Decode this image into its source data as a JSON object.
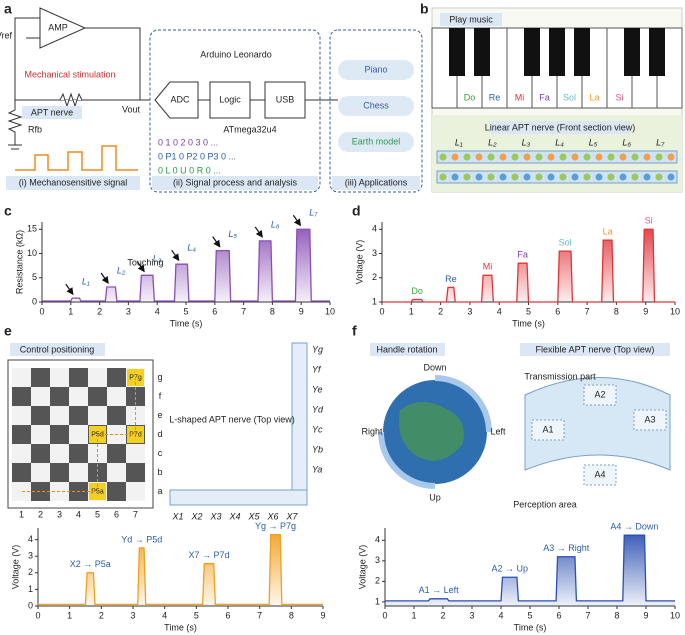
{
  "panel_labels": [
    "a",
    "b",
    "c",
    "d",
    "e",
    "f"
  ],
  "panel_a": {
    "vref": "Vref",
    "amp": "AMP",
    "stimulation": "Mechanical stimulation",
    "nerve": "APT nerve",
    "rfb": "Rfb",
    "vout": "Vout",
    "mcu": "Arduino Leonardo",
    "adc": "ADC",
    "logic": "Logic",
    "usb": "USB",
    "chip": "ATmega32u4",
    "bits": [
      "0 1 0 2 0 3 0 ...",
      "0 P1 0 P2 0 P3 0 ...",
      "0 L 0 U 0 R 0 ..."
    ],
    "apps": [
      "Piano",
      "Chess",
      "Earth model"
    ],
    "captions": [
      "(i) Mechanosensitive signal",
      "(ii) Signal process and analysis",
      "(iii) Applications"
    ]
  },
  "panel_b": {
    "title": "Play music",
    "notes": [
      "Do",
      "Re",
      "Mi",
      "Fa",
      "Sol",
      "La",
      "Si"
    ],
    "nerve": "Linear APT nerve (Front section view)",
    "segments": [
      "L₁",
      "L₂",
      "L₃",
      "L₄",
      "L₅",
      "L₆",
      "L₇"
    ]
  },
  "panel_e": {
    "title": "Control positioning",
    "rows": [
      "g",
      "f",
      "e",
      "d",
      "c",
      "b",
      "a"
    ],
    "cols": [
      "1",
      "2",
      "3",
      "4",
      "5",
      "6",
      "7"
    ],
    "cells": [
      "P7g",
      "P5d",
      "P7d",
      "P5a"
    ],
    "nerve": "L-shaped APT nerve (Top view)",
    "y_labels": [
      "Yg",
      "Yf",
      "Ye",
      "Yd",
      "Yc",
      "Yb",
      "Ya"
    ],
    "x_labels": [
      "X1",
      "X2",
      "X3",
      "X4",
      "X5",
      "X6",
      "X7"
    ]
  },
  "panel_f": {
    "title": "Handle rotation",
    "directions": [
      "Down",
      "Left",
      "Up",
      "Right"
    ],
    "nerve": "Flexible APT nerve (Top view)",
    "transmission": "Transmission part",
    "perception": "Perception area",
    "areas": [
      "A1",
      "A2",
      "A3",
      "A4"
    ]
  },
  "chart_data": [
    {
      "type": "line",
      "ylabel": "Resistance (kΩ)",
      "xlabel": "Time (s)",
      "color": "#8a4fb5",
      "x": [
        0,
        1.0,
        1.05,
        1.3,
        1.35,
        2.2,
        2.25,
        2.55,
        2.6,
        3.4,
        3.45,
        3.85,
        3.9,
        4.6,
        4.65,
        5.05,
        5.1,
        6.0,
        6.05,
        6.5,
        6.55,
        7.5,
        7.55,
        7.95,
        8.0,
        8.8,
        8.85,
        9.3,
        9.35,
        10
      ],
      "values": [
        0.2,
        0.2,
        0.8,
        0.8,
        0.2,
        0.2,
        3.1,
        3.1,
        0.2,
        0.2,
        5.5,
        5.5,
        0.2,
        0.2,
        7.8,
        7.8,
        0.2,
        0.2,
        10.6,
        10.6,
        0.2,
        0.2,
        12.6,
        12.6,
        0.2,
        0.2,
        15,
        15,
        0.2,
        0.2
      ],
      "xlim": [
        0,
        10
      ],
      "xticks": [
        0,
        1,
        2,
        3,
        4,
        5,
        6,
        7,
        8,
        9,
        10
      ],
      "ylim": [
        0,
        16.5
      ],
      "yticks": [
        0,
        5,
        10,
        15
      ],
      "annotations": [
        "L₁",
        "L₂",
        "L₃",
        "L₄",
        "L₅",
        "L₆",
        "L₇"
      ],
      "annotation_colors": [
        "#2a5fa8"
      ],
      "arrows": true,
      "note": "Touching"
    },
    {
      "type": "line",
      "ylabel": "Voltage (V)",
      "xlabel": "Time (s)",
      "color": "#e0343a",
      "x": [
        0,
        1.0,
        1.05,
        1.35,
        1.4,
        2.2,
        2.25,
        2.45,
        2.5,
        3.4,
        3.45,
        3.75,
        3.8,
        4.6,
        4.65,
        4.95,
        5.0,
        6.0,
        6.05,
        6.45,
        6.5,
        7.5,
        7.55,
        7.85,
        7.9,
        8.9,
        8.95,
        9.25,
        9.3,
        10
      ],
      "values": [
        1,
        1,
        1.1,
        1.1,
        1,
        1,
        1.6,
        1.6,
        1,
        1,
        2.1,
        2.1,
        1,
        1,
        2.6,
        2.6,
        1,
        1,
        3.1,
        3.1,
        1,
        1,
        3.55,
        3.55,
        1,
        1,
        4.0,
        4.0,
        1,
        1
      ],
      "xlim": [
        0,
        10
      ],
      "xticks": [
        0,
        1,
        2,
        3,
        4,
        5,
        6,
        7,
        8,
        9,
        10
      ],
      "ylim": [
        1,
        4.3
      ],
      "yticks": [
        1,
        2,
        3,
        4
      ],
      "annotations": [
        "Do",
        "Re",
        "Mi",
        "Fa",
        "Sol",
        "La",
        "Si"
      ],
      "annotation_colors": [
        "#3aa33a",
        "#2a5fa8",
        "#e0343a",
        "#7a3fa8",
        "#5fc0c8",
        "#f09a20",
        "#e05a8a"
      ]
    },
    {
      "type": "line",
      "ylabel": "Voltage (V)",
      "xlabel": "Time (s)",
      "color": "#f0a020",
      "x": [
        0,
        1.5,
        1.55,
        1.75,
        1.8,
        3.15,
        3.2,
        3.35,
        3.4,
        5.2,
        5.25,
        5.55,
        5.6,
        7.3,
        7.35,
        7.65,
        7.7,
        9
      ],
      "values": [
        0.1,
        0.1,
        2.0,
        2.0,
        0.1,
        0.1,
        3.5,
        3.5,
        0.1,
        0.1,
        2.55,
        2.55,
        0.1,
        0.1,
        4.3,
        4.3,
        0.1,
        0.1
      ],
      "xlim": [
        0,
        9
      ],
      "xticks": [
        0,
        1,
        2,
        3,
        4,
        5,
        6,
        7,
        8,
        9
      ],
      "ylim": [
        0,
        4.7
      ],
      "yticks": [
        0,
        1,
        2,
        3,
        4
      ],
      "annotations": [
        "X2 → P5a",
        "Yd → P5d",
        "X7 → P7d",
        "Yg → P7g"
      ],
      "annotation_colors": [
        "#2a5fa8"
      ]
    },
    {
      "type": "line",
      "ylabel": "Voltage (V)",
      "xlabel": "Time (s)",
      "color": "#2a4fb0",
      "x": [
        0,
        1.5,
        1.55,
        2.15,
        2.2,
        4.0,
        4.05,
        4.55,
        4.6,
        5.9,
        5.95,
        6.55,
        6.6,
        8.2,
        8.25,
        8.95,
        9.0,
        10
      ],
      "values": [
        1.05,
        1.05,
        1.15,
        1.15,
        1.05,
        1.05,
        2.2,
        2.2,
        1.05,
        1.05,
        3.2,
        3.2,
        1.05,
        1.05,
        4.25,
        4.25,
        1.05,
        1.05
      ],
      "xlim": [
        0,
        10
      ],
      "xticks": [
        0,
        1,
        2,
        3,
        4,
        5,
        6,
        7,
        8,
        9,
        10
      ],
      "ylim": [
        0.8,
        4.6
      ],
      "yticks": [
        1,
        2,
        3,
        4
      ],
      "annotations": [
        "A1 → Left",
        "A2 → Up",
        "A3 → Right",
        "A4 → Down"
      ],
      "annotation_colors": [
        "#2a5fa8"
      ]
    }
  ]
}
